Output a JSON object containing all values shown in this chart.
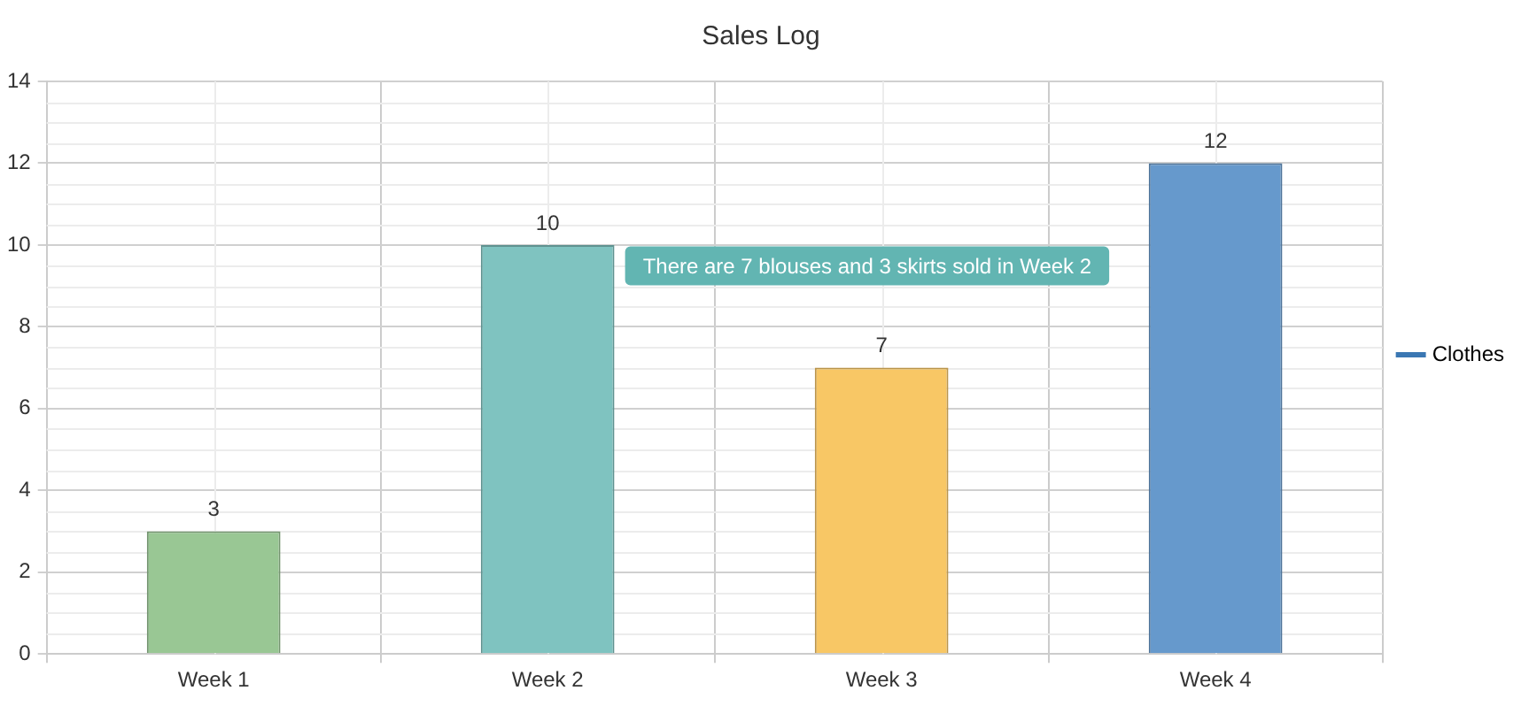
{
  "chart_data": {
    "type": "bar",
    "title": "Sales Log",
    "categories": [
      "Week 1",
      "Week 2",
      "Week 3",
      "Week 4"
    ],
    "series": [
      {
        "name": "Clothes",
        "color": "#3a77b3",
        "colors": [
          "#99c794",
          "#7fc3c0",
          "#f8c765",
          "#6699cc"
        ],
        "values": [
          3,
          10,
          7,
          12
        ]
      }
    ],
    "ylim": [
      0,
      14
    ],
    "yticks": [
      0,
      2,
      4,
      6,
      8,
      10,
      12,
      14
    ],
    "grid": true,
    "legend": "right",
    "data_labels": true,
    "annotations": [
      "There are 7 blouses and 3 skirts sold in Week 2"
    ]
  }
}
